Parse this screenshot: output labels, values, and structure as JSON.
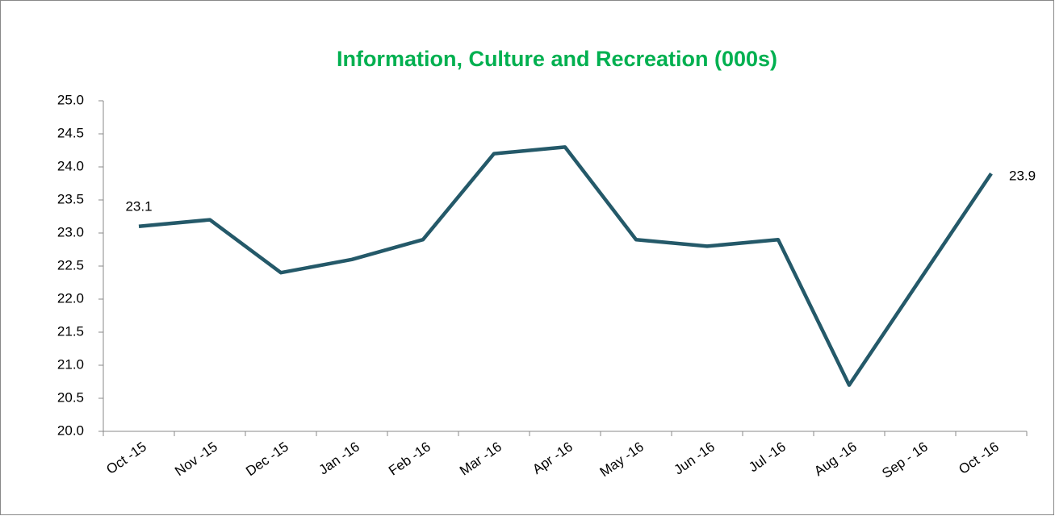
{
  "chart_data": {
    "type": "line",
    "title": "Information, Culture and Recreation (000s)",
    "categories": [
      "Oct -15",
      "Nov -15",
      "Dec -15",
      "Jan -16",
      "Feb -16",
      "Mar -16",
      "Apr -16",
      "May -16",
      "Jun -16",
      "Jul -16",
      "Aug -16",
      "Sep - 16",
      "Oct -16"
    ],
    "series": [
      {
        "name": "Information, Culture and Recreation",
        "color": "#245969",
        "values": [
          23.1,
          23.2,
          22.4,
          22.6,
          22.9,
          24.2,
          24.3,
          22.9,
          22.8,
          22.9,
          20.7,
          22.3,
          23.9
        ]
      }
    ],
    "data_labels": [
      0,
      12
    ],
    "ylim": [
      20,
      25
    ],
    "yticks": [
      {
        "value": 20,
        "label": "20.0"
      },
      20.5,
      {
        "value": 21,
        "label": "21.0"
      },
      21.5,
      {
        "value": 22,
        "label": "22.0"
      },
      22.5,
      {
        "value": 23,
        "label": "23.0"
      },
      23.5,
      {
        "value": 24,
        "label": "24.0"
      },
      24.5,
      {
        "value": 25,
        "label": "25.0"
      }
    ],
    "grid": false
  }
}
